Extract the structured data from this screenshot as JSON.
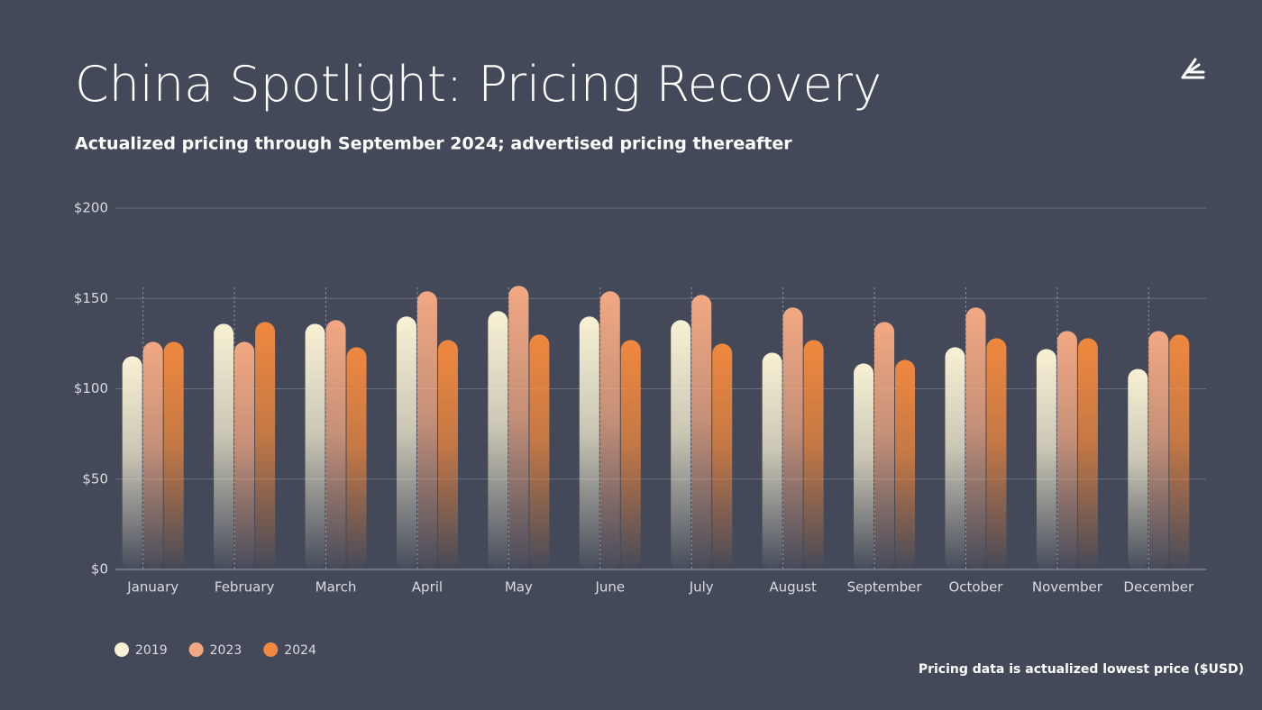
{
  "chart_data": {
    "type": "bar",
    "title": "China Spotlight: Pricing Recovery",
    "subtitle": "Actualized pricing through September 2024; advertised pricing thereafter",
    "note": "Pricing data is actualized lowest price ($USD)",
    "categories": [
      "January",
      "February",
      "March",
      "April",
      "May",
      "June",
      "July",
      "August",
      "September",
      "October",
      "November",
      "December"
    ],
    "series": [
      {
        "name": "2019",
        "color": "#f8f1d4",
        "values": [
          118,
          136,
          136,
          140,
          143,
          140,
          138,
          120,
          114,
          123,
          122,
          111
        ]
      },
      {
        "name": "2023",
        "color": "#f2a882",
        "values": [
          126,
          126,
          138,
          154,
          157,
          154,
          152,
          145,
          137,
          145,
          132,
          132
        ]
      },
      {
        "name": "2024",
        "color": "#f0883e",
        "values": [
          126,
          137,
          123,
          127,
          130,
          127,
          125,
          127,
          116,
          128,
          128,
          130
        ]
      }
    ],
    "ylim": [
      0,
      200
    ],
    "yticks": [
      {
        "value": 0,
        "label": "$0"
      },
      {
        "value": 50,
        "label": "$50"
      },
      {
        "value": 100,
        "label": "$100"
      },
      {
        "value": 150,
        "label": "$150"
      },
      {
        "value": 200,
        "label": "$200"
      }
    ],
    "grid": true,
    "legend": "bottom-left"
  }
}
